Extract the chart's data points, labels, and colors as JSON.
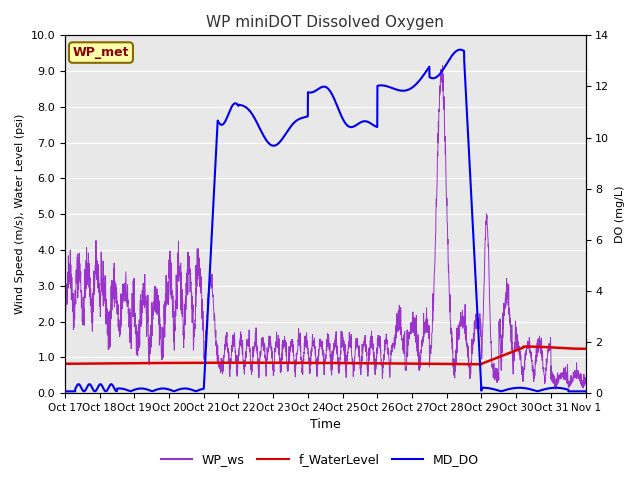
{
  "title": "WP miniDOT Dissolved Oxygen",
  "ylabel_left": "Wind Speed (m/s), Water Level (psi)",
  "ylabel_right": "DO (mg/L)",
  "xlabel": "Time",
  "ylim_left": [
    0.0,
    10.0
  ],
  "ylim_right": [
    0,
    14
  ],
  "yticks_left": [
    0.0,
    1.0,
    2.0,
    3.0,
    4.0,
    5.0,
    6.0,
    7.0,
    8.0,
    9.0,
    10.0
  ],
  "yticks_right": [
    0,
    2,
    4,
    6,
    8,
    10,
    12,
    14
  ],
  "bg_color": "#e8e8e8",
  "title_color": "#333333",
  "wp_ws_color": "#9933cc",
  "f_waterlevel_color": "#dd0000",
  "md_do_color": "#0000ee",
  "legend_label_box": "WP_met",
  "legend_box_facecolor": "#ffffaa",
  "legend_box_edgecolor": "#886600",
  "legend_box_textcolor": "#880000",
  "tick_labels": [
    "Oct 17",
    "Oct 18",
    "Oct 19",
    "Oct 20",
    "Oct 21",
    "Oct 22",
    "Oct 23",
    "Oct 24",
    "Oct 25",
    "Oct 26",
    "Oct 27",
    "Oct 28",
    "Oct 29",
    "Oct 30",
    "Oct 31",
    "Nov 1"
  ]
}
